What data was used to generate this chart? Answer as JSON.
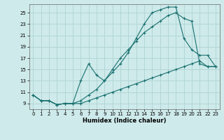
{
  "xlabel": "Humidex (Indice chaleur)",
  "ylabel": "",
  "bg_color": "#ceeaea",
  "grid_color": "#aacfcf",
  "line_color": "#1a7070",
  "xlim": [
    -0.5,
    23.5
  ],
  "ylim": [
    8.0,
    26.5
  ],
  "yticks": [
    9,
    11,
    13,
    15,
    17,
    19,
    21,
    23,
    25
  ],
  "xticks": [
    0,
    1,
    2,
    3,
    4,
    5,
    6,
    7,
    8,
    9,
    10,
    11,
    12,
    13,
    14,
    15,
    16,
    17,
    18,
    19,
    20,
    21,
    22,
    23
  ],
  "line1_x": [
    0,
    1,
    2,
    3,
    4,
    5,
    6,
    7,
    8,
    9,
    10,
    11,
    12,
    13,
    14,
    15,
    16,
    17,
    18,
    19,
    20,
    21,
    22,
    23
  ],
  "line1_y": [
    10.5,
    9.5,
    9.5,
    8.8,
    9.0,
    9.0,
    9.5,
    10.5,
    11.5,
    13.0,
    15.0,
    17.0,
    18.5,
    20.0,
    21.5,
    22.5,
    23.5,
    24.5,
    25.0,
    24.0,
    23.5,
    16.0,
    15.5,
    15.5
  ],
  "line2_x": [
    0,
    1,
    2,
    3,
    4,
    5,
    6,
    7,
    8,
    9,
    10,
    11,
    12,
    13,
    14,
    15,
    16,
    17,
    18,
    19,
    20,
    21,
    22,
    23
  ],
  "line2_y": [
    10.5,
    9.5,
    9.5,
    8.8,
    9.0,
    9.0,
    13.0,
    16.0,
    14.0,
    13.0,
    14.5,
    16.0,
    18.0,
    20.5,
    23.0,
    25.0,
    25.5,
    26.0,
    26.0,
    20.5,
    18.5,
    17.5,
    17.5,
    15.5
  ],
  "line3_x": [
    0,
    1,
    2,
    3,
    4,
    5,
    6,
    7,
    8,
    9,
    10,
    11,
    12,
    13,
    14,
    15,
    16,
    17,
    18,
    19,
    20,
    21,
    22,
    23
  ],
  "line3_y": [
    10.5,
    9.5,
    9.5,
    8.8,
    9.0,
    9.0,
    9.0,
    9.5,
    10.0,
    10.5,
    11.0,
    11.5,
    12.0,
    12.5,
    13.0,
    13.5,
    14.0,
    14.5,
    15.0,
    15.5,
    16.0,
    16.5,
    15.5,
    15.5
  ]
}
